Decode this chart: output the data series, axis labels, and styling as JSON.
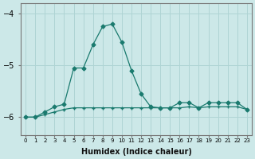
{
  "xlabel": "Humidex (Indice chaleur)",
  "bg_color": "#cce8e8",
  "grid_color": "#afd4d4",
  "line_color": "#1a7a6e",
  "x": [
    0,
    1,
    2,
    3,
    4,
    5,
    6,
    7,
    8,
    9,
    10,
    11,
    12,
    13,
    14,
    15,
    16,
    17,
    18,
    19,
    20,
    21,
    22,
    23
  ],
  "line_peak": [
    -6.0,
    -6.0,
    -5.9,
    -5.8,
    -5.75,
    -5.05,
    -5.05,
    -4.6,
    -4.25,
    -4.2,
    -4.55,
    -5.1,
    -5.55,
    -5.8,
    -5.82,
    -5.82,
    -5.72,
    -5.72,
    -5.82,
    -5.72,
    -5.72,
    -5.72,
    -5.72,
    -5.85
  ],
  "line_flat": [
    -6.0,
    -6.0,
    -5.95,
    -5.9,
    -5.85,
    -5.82,
    -5.82,
    -5.82,
    -5.82,
    -5.82,
    -5.82,
    -5.82,
    -5.82,
    -5.82,
    -5.82,
    -5.82,
    -5.82,
    -5.8,
    -5.82,
    -5.8,
    -5.8,
    -5.8,
    -5.8,
    -5.85
  ],
  "ylim": [
    -6.35,
    -3.8
  ],
  "yticks": [
    -6,
    -5,
    -4
  ],
  "xlim": [
    -0.5,
    23.5
  ]
}
